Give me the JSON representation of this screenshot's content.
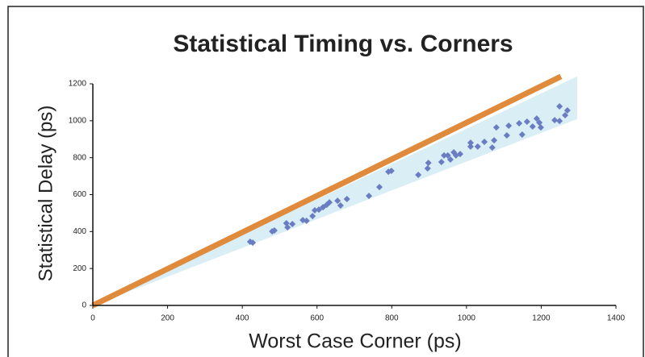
{
  "chart_data": {
    "type": "scatter",
    "title": "Statistical Timing vs. Corners",
    "x_label": "Worst Case Corner (ps)",
    "y_label": "Statistical Delay (ps)",
    "xlim": [
      0,
      1400
    ],
    "xticks": [
      0,
      200,
      400,
      600,
      800,
      1000,
      1200,
      1400
    ],
    "ylim": [
      0,
      1200
    ],
    "yticks": [
      0,
      200,
      400,
      600,
      800,
      1000,
      1200
    ],
    "grid": false,
    "series": [
      {
        "color": "#6a7cc2",
        "x": [
          421,
          428,
          480,
          486,
          518,
          521,
          534,
          562,
          572,
          588,
          594,
          605,
          616,
          626,
          633,
          655,
          663,
          680,
          739,
          767,
          791,
          799,
          871,
          896,
          898,
          933,
          940,
          950,
          957,
          966,
          972,
          983,
          1011,
          1011,
          1030,
          1048,
          1069,
          1074,
          1080,
          1108,
          1113,
          1141,
          1149,
          1162,
          1177,
          1188,
          1195,
          1199,
          1236,
          1249,
          1249,
          1264,
          1270
        ],
        "values": [
          345,
          340,
          401,
          406,
          445,
          423,
          441,
          462,
          458,
          484,
          515,
          519,
          532,
          545,
          558,
          567,
          541,
          576,
          593,
          641,
          724,
          729,
          707,
          742,
          772,
          777,
          812,
          812,
          790,
          829,
          812,
          820,
          881,
          860,
          860,
          886,
          855,
          894,
          964,
          921,
          973,
          986,
          925,
          995,
          969,
          1012,
          990,
          964,
          1003,
          1078,
          999,
          1030,
          1056
        ]
      }
    ],
    "reference_line": {
      "color": "#e08a3c",
      "x": [
        0,
        1253
      ],
      "values": [
        0,
        1240
      ]
    },
    "band": {
      "color": "#d9eef5",
      "x": [
        0,
        1296
      ],
      "upper": [
        0,
        1240
      ],
      "lower": [
        0,
        1009
      ]
    }
  }
}
